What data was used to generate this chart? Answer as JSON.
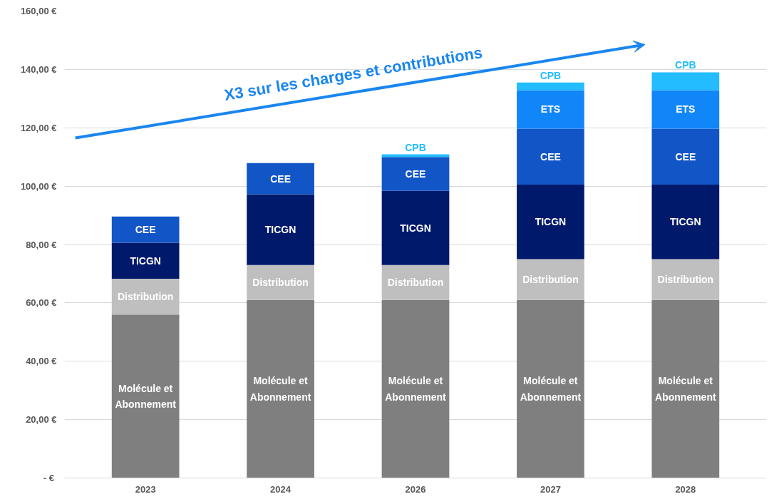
{
  "chart_data": {
    "type": "bar",
    "stacked": true,
    "categories": [
      "2023",
      "2024",
      "2026",
      "2027",
      "2028"
    ],
    "series": [
      {
        "name": "Molécule et Abonnement",
        "color": "#7f7f7f",
        "values": [
          56,
          61,
          61,
          61,
          61
        ]
      },
      {
        "name": "Distribution",
        "color": "#bfbfbf",
        "values": [
          12.3,
          12,
          12,
          14,
          14
        ]
      },
      {
        "name": "TICGN",
        "color": "#00196b",
        "values": [
          12.3,
          24.2,
          25.4,
          25.5,
          25.5
        ]
      },
      {
        "name": "CEE",
        "color": "#1155c6",
        "values": [
          9,
          10.7,
          11.6,
          19.2,
          19.2
        ]
      },
      {
        "name": "ETS",
        "color": "#1186f9",
        "values": [
          null,
          null,
          null,
          13.2,
          13.2
        ]
      },
      {
        "name": "CPB",
        "color": "#22bcff",
        "values": [
          null,
          null,
          0.9,
          2.6,
          6.1
        ]
      }
    ],
    "ylim": [
      0,
      160
    ],
    "yticks": [
      {
        "value": 0,
        "label": "-  €"
      },
      {
        "value": 20,
        "label": "20,00 €"
      },
      {
        "value": 40,
        "label": "40,00 €"
      },
      {
        "value": 60,
        "label": "60,00 €"
      },
      {
        "value": 80,
        "label": "80,00 €"
      },
      {
        "value": 100,
        "label": "100,00 €"
      },
      {
        "value": 120,
        "label": "120,00 €"
      },
      {
        "value": 140,
        "label": "140,00 €"
      },
      {
        "value": 160,
        "label": "160,00 €"
      }
    ],
    "grid": "y",
    "annotations": [
      "X3 sur les charges et contributions"
    ]
  }
}
